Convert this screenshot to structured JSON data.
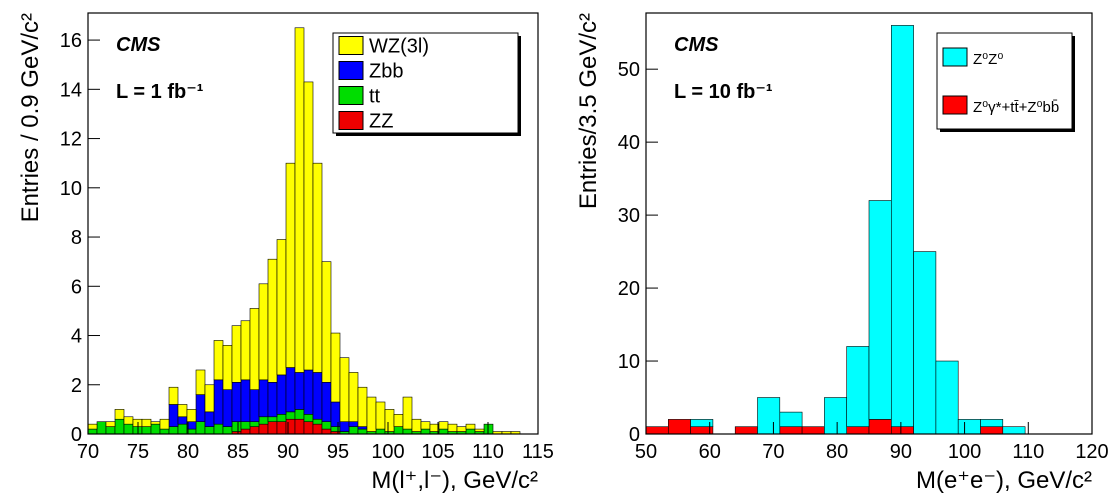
{
  "chart_data": [
    {
      "type": "histogram",
      "stacked": true,
      "legend": "upper right",
      "x_label": "M(l⁺,l⁻), GeV/c²",
      "y_label": "Entries / 0.9 GeV/c²",
      "annotations": [
        "CMS",
        "L = 1 fb⁻¹"
      ],
      "bins": [
        70,
        70.9,
        71.8,
        72.7,
        73.6,
        74.5,
        75.4,
        76.3,
        77.2,
        78.1,
        79,
        79.9,
        80.8,
        81.7,
        82.6,
        83.5,
        84.4,
        85.3,
        86.2,
        87.1,
        88,
        88.9,
        89.8,
        90.7,
        91.6,
        92.5,
        93.4,
        94.3,
        95.2,
        96.1,
        97,
        97.9,
        98.8,
        99.7,
        100.6,
        101.5,
        102.4,
        103.3,
        104.2,
        105.1,
        106,
        106.9,
        107.8,
        108.7,
        109.6,
        110.5,
        111.4,
        112.3,
        113.2,
        114.1,
        115
      ],
      "series": [
        {
          "name": "WZ(3l)",
          "color": "#ffff00",
          "values": [
            0.2,
            0,
            0.2,
            0.4,
            0.3,
            0.3,
            0.3,
            0.1,
            0.4,
            0.7,
            0.5,
            0.5,
            1.0,
            1.1,
            1.6,
            1.8,
            2.3,
            2.4,
            3.3,
            3.9,
            5.0,
            5.5,
            8.3,
            14.0,
            11.7,
            8.5,
            4.9,
            2.8,
            2.6,
            2.0,
            1.6,
            1.4,
            1.1,
            0.9,
            0.5,
            1.3,
            0.5,
            0.3,
            0.3,
            0.3,
            0.3,
            0.2,
            0.2,
            0.1,
            0,
            0.1,
            0.1,
            0.1,
            0,
            0
          ]
        },
        {
          "name": "Zbb",
          "color": "#0000ff",
          "values": [
            0,
            0,
            0,
            0,
            0,
            0,
            0,
            0,
            0,
            0.9,
            0.3,
            0.3,
            1.1,
            0.6,
            1.8,
            1.5,
            1.6,
            1.7,
            1.3,
            1.5,
            1.4,
            1.6,
            1.8,
            1.5,
            1.8,
            1.9,
            1.6,
            1.0,
            0.4,
            0.2,
            0.1,
            0,
            0,
            0,
            0,
            0,
            0,
            0,
            0,
            0,
            0,
            0,
            0,
            0,
            0,
            0,
            0,
            0,
            0,
            0
          ]
        },
        {
          "name": "tt",
          "color": "#00dd00",
          "values": [
            0.2,
            0.5,
            0.3,
            0.6,
            0.4,
            0.3,
            0.3,
            0.4,
            0.2,
            0.3,
            0.4,
            0.2,
            0.5,
            0.3,
            0.4,
            0.3,
            0.4,
            0.3,
            0.2,
            0.3,
            0.2,
            0.3,
            0.3,
            0.4,
            0.3,
            0.2,
            0.3,
            0.2,
            0.1,
            0.3,
            0.2,
            0.1,
            0.2,
            0.1,
            0.3,
            0.2,
            0.1,
            0.2,
            0.1,
            0.2,
            0.1,
            0.1,
            0.2,
            0.1,
            0.4,
            0,
            0,
            0,
            0,
            0
          ]
        },
        {
          "name": "ZZ",
          "color": "#ee0000",
          "values": [
            0,
            0,
            0,
            0,
            0,
            0,
            0,
            0,
            0,
            0,
            0,
            0,
            0,
            0,
            0,
            0,
            0.1,
            0.2,
            0.3,
            0.4,
            0.5,
            0.5,
            0.6,
            0.6,
            0.5,
            0.4,
            0.2,
            0.1,
            0,
            0,
            0,
            0,
            0,
            0,
            0,
            0,
            0,
            0,
            0,
            0,
            0,
            0,
            0,
            0,
            0,
            0,
            0,
            0,
            0,
            0
          ]
        }
      ],
      "xlim": [
        70,
        115
      ],
      "xticks": [
        70,
        75,
        80,
        85,
        90,
        95,
        100,
        105,
        110,
        115
      ],
      "ylim": [
        0,
        17.1
      ],
      "yticks": [
        0,
        2,
        4,
        6,
        8,
        10,
        12,
        14,
        16
      ]
    },
    {
      "type": "histogram",
      "stacked": true,
      "legend": "upper right",
      "x_label": "M(e⁺e⁻), GeV/c²",
      "y_label": "Entries/3.5 GeV/c²",
      "annotations": [
        "CMS",
        "L = 10 fb⁻¹"
      ],
      "bins": [
        50,
        53.5,
        57,
        60.5,
        64,
        67.5,
        71,
        74.5,
        78,
        81.5,
        85,
        88.5,
        92,
        95.5,
        99,
        102.5,
        106,
        109.5,
        113,
        116.5,
        120
      ],
      "series": [
        {
          "name": "Z⁰Z⁰",
          "color": "#00ffff",
          "values": [
            0,
            0,
            1,
            0,
            0,
            5,
            2,
            0,
            5,
            11,
            30,
            55,
            25,
            10,
            2,
            1,
            1,
            0,
            0,
            0
          ]
        },
        {
          "name": "Z⁰γ*+tt̄+Z⁰bb̄",
          "color": "#ff0000",
          "values": [
            1,
            2,
            1,
            0,
            1,
            0,
            1,
            1,
            0,
            1,
            2,
            1,
            0,
            0,
            0,
            1,
            0,
            0,
            0,
            0
          ]
        }
      ],
      "xlim": [
        50,
        120
      ],
      "xticks": [
        50,
        60,
        70,
        80,
        90,
        100,
        110,
        120
      ],
      "ylim": [
        0,
        57.7
      ],
      "yticks": [
        0,
        10,
        20,
        30,
        40,
        50
      ]
    }
  ]
}
